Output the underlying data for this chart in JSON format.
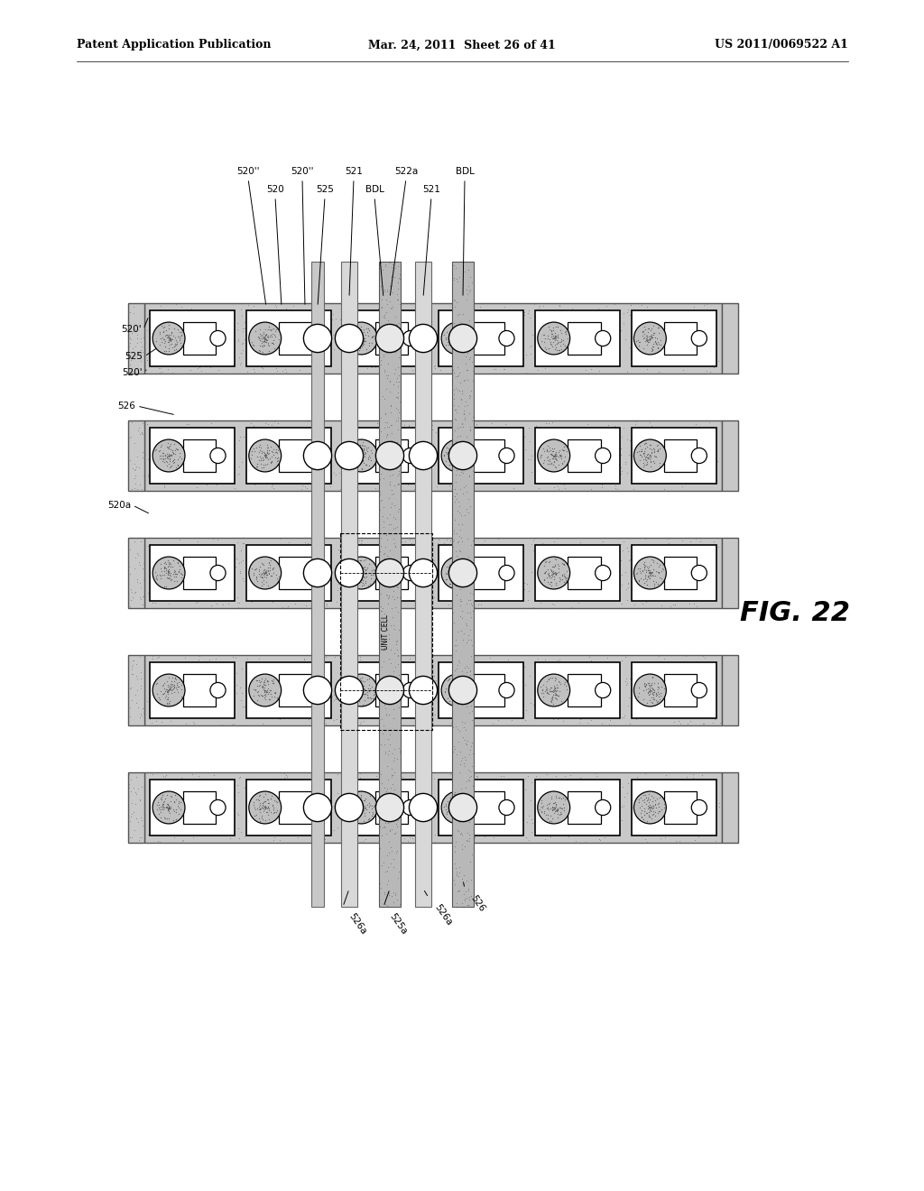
{
  "bg_color": "#ffffff",
  "header_left": "Patent Application Publication",
  "header_center": "Mar. 24, 2011  Sheet 26 of 41",
  "header_right": "US 2011/0069522 A1",
  "fig_label": "FIG. 22",
  "stipple_color": "#c8c8c8",
  "stipple_dark": "#999999",
  "vline_stipple": "#b0b0b0",
  "vline_dark_stipple": "#888888"
}
